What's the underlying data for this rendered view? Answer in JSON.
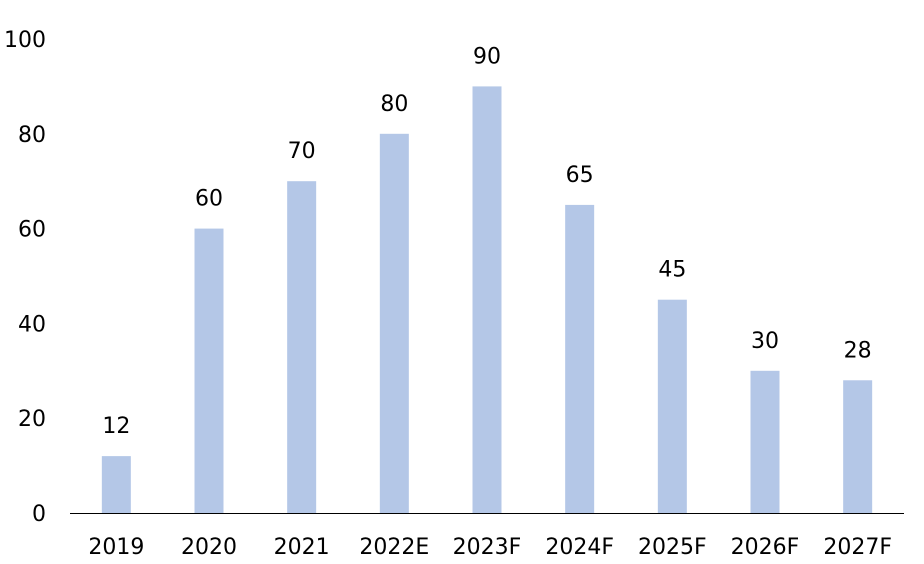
{
  "chart_data": {
    "type": "bar",
    "categories": [
      "2019",
      "2020",
      "2021",
      "2022E",
      "2023F",
      "2024F",
      "2025F",
      "2026F",
      "2027F"
    ],
    "values": [
      12,
      60,
      70,
      80,
      90,
      65,
      45,
      30,
      28
    ],
    "data_labels": [
      "12",
      "60",
      "70",
      "80",
      "90",
      "65",
      "45",
      "30",
      "28"
    ],
    "ylim": [
      0,
      100
    ],
    "yticks": [
      "0",
      "20",
      "40",
      "60",
      "80",
      "100"
    ],
    "grid": false,
    "legend": "none",
    "bar_color": "#b4c7e7",
    "axis_color": "#000000"
  }
}
